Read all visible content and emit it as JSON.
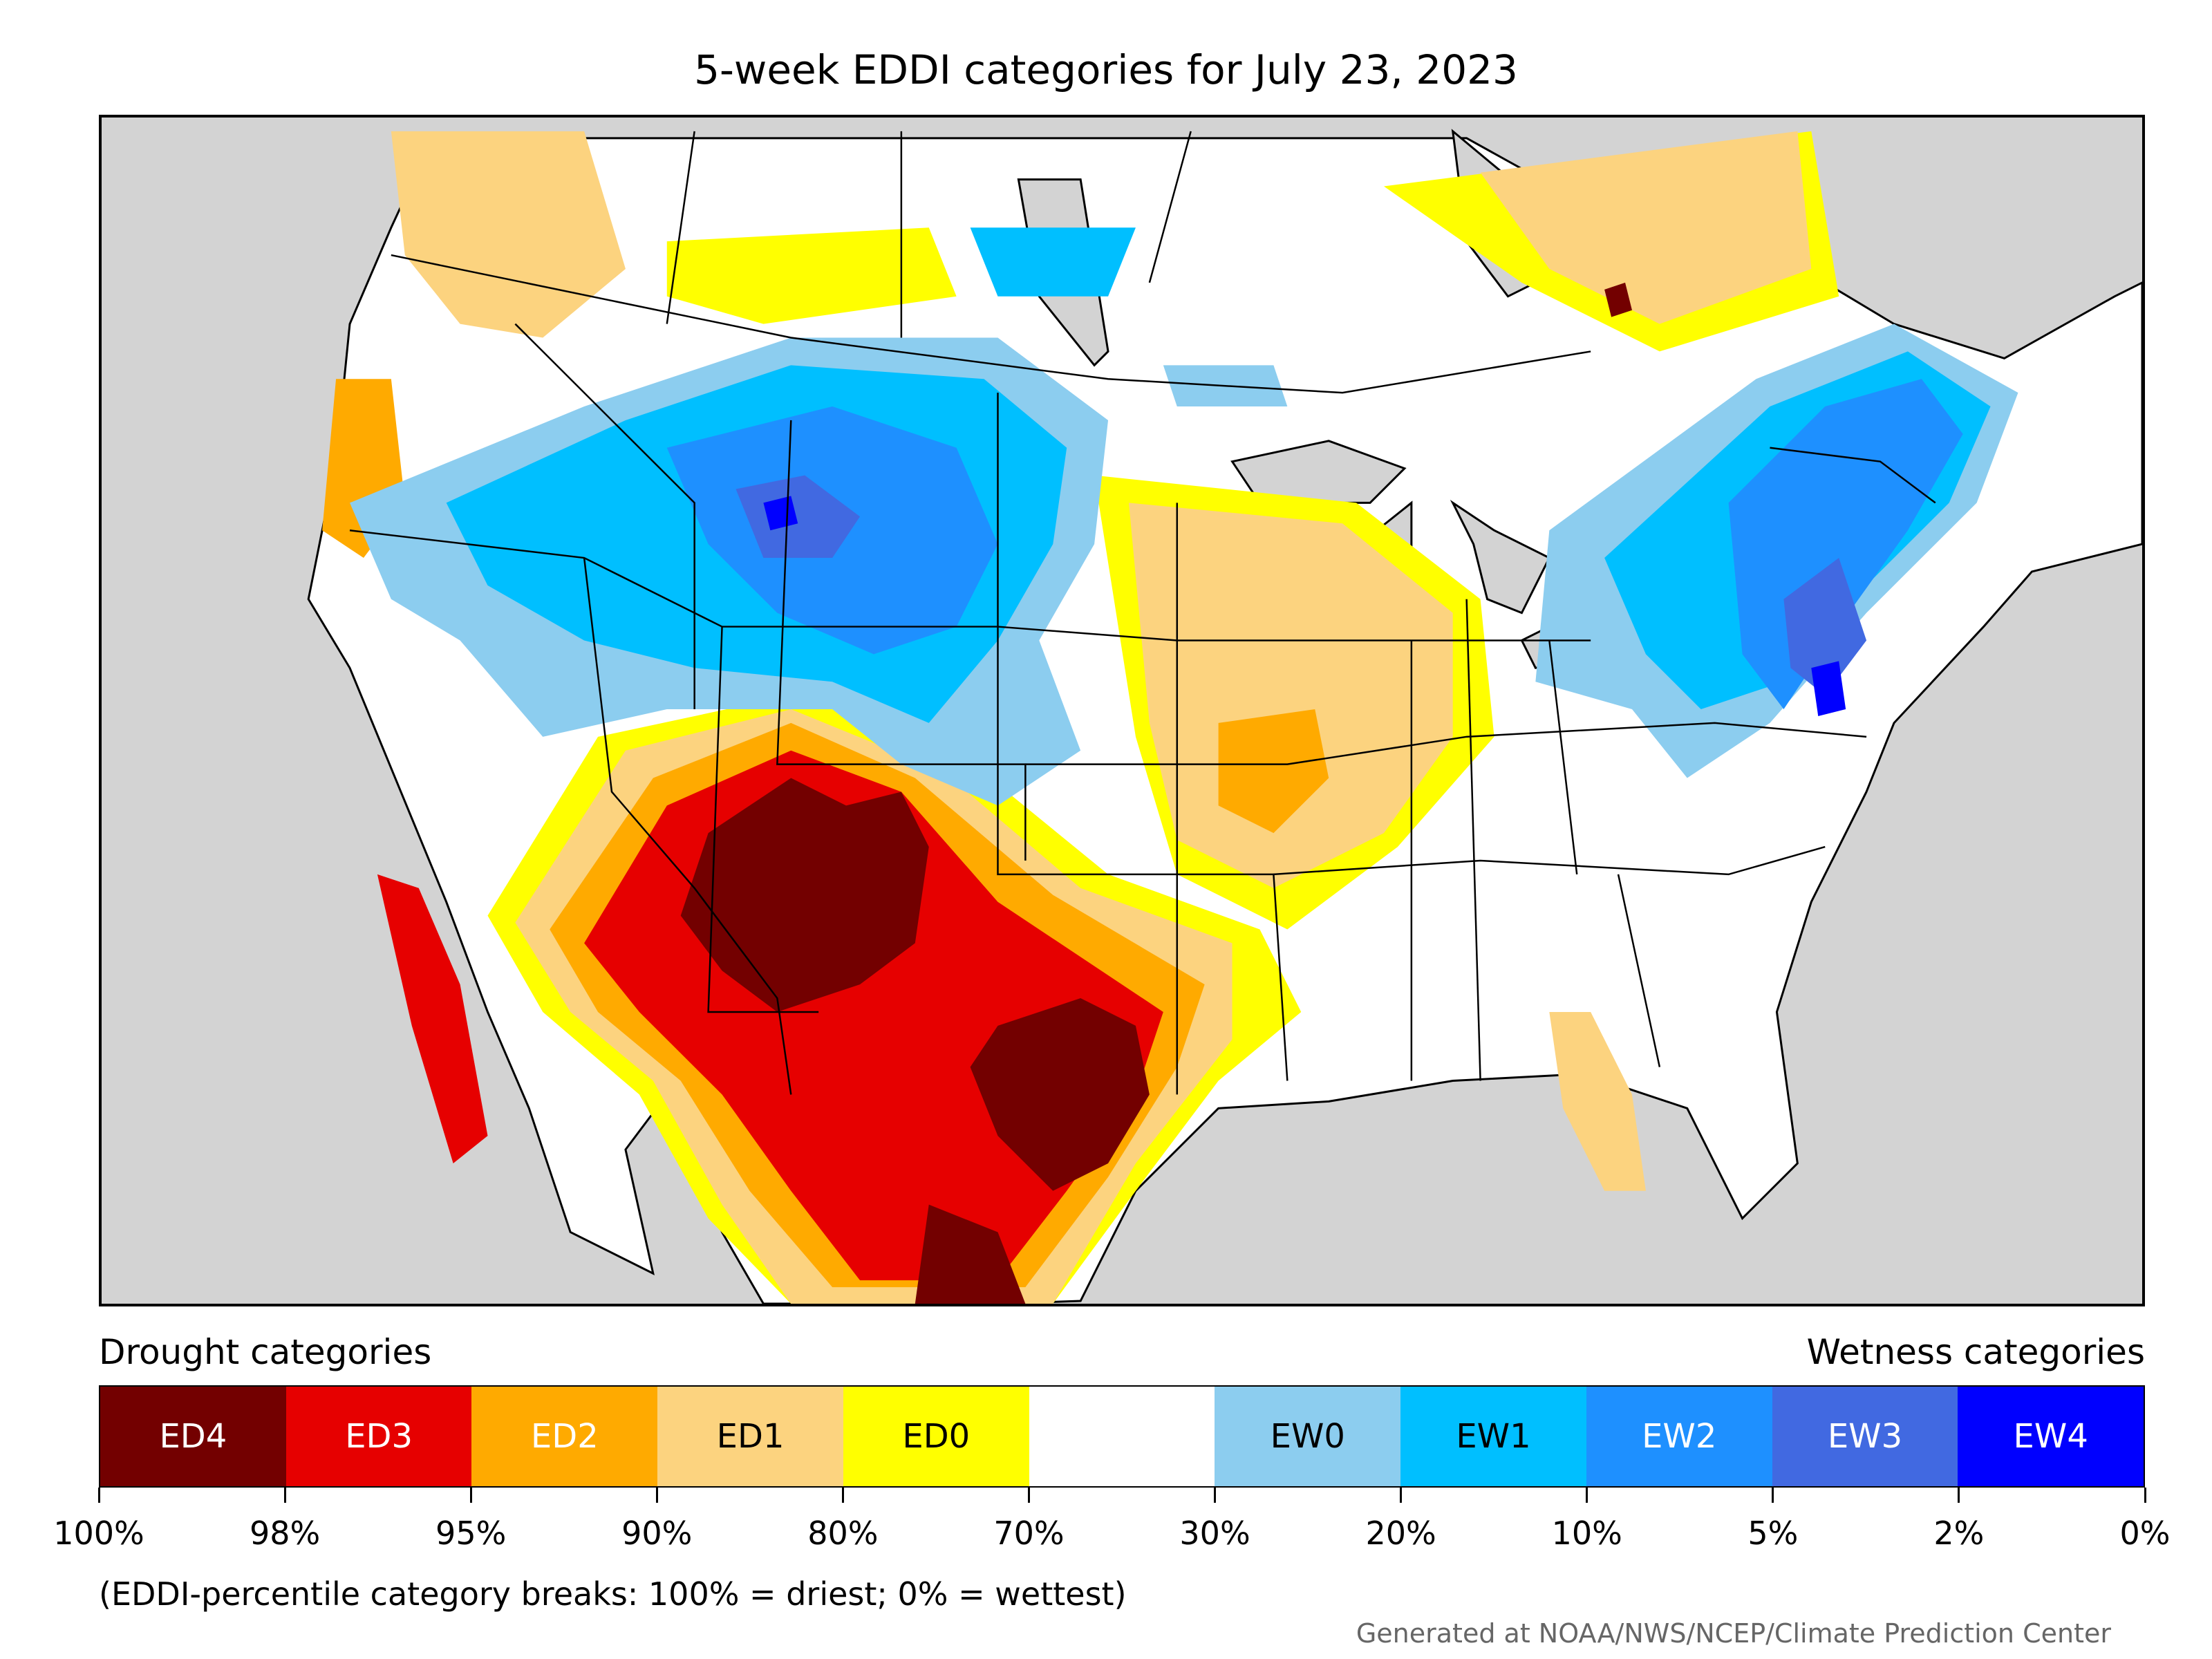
{
  "title": "5-week EDDI categories for July 23, 2023",
  "legend": {
    "drought_header": "Drought categories",
    "wetness_header": "Wetness categories",
    "categories": [
      {
        "label": "ED4",
        "color": "#730000",
        "text_color": "#ffffff"
      },
      {
        "label": "ED3",
        "color": "#e60000",
        "text_color": "#ffffff"
      },
      {
        "label": "ED2",
        "color": "#ffaa00",
        "text_color": "#ffffff"
      },
      {
        "label": "ED1",
        "color": "#fcd37f",
        "text_color": "#000000"
      },
      {
        "label": "ED0",
        "color": "#ffff00",
        "text_color": "#000000"
      },
      {
        "label": "",
        "color": "#ffffff",
        "text_color": "#000000"
      },
      {
        "label": "EW0",
        "color": "#8ccdef",
        "text_color": "#000000"
      },
      {
        "label": "EW1",
        "color": "#00bfff",
        "text_color": "#000000"
      },
      {
        "label": "EW2",
        "color": "#1e90ff",
        "text_color": "#ffffff"
      },
      {
        "label": "EW3",
        "color": "#4169e1",
        "text_color": "#ffffff"
      },
      {
        "label": "EW4",
        "color": "#0000ff",
        "text_color": "#ffffff"
      }
    ],
    "breaks": [
      "100%",
      "98%",
      "95%",
      "90%",
      "80%",
      "70%",
      "30%",
      "20%",
      "10%",
      "5%",
      "2%",
      "0%"
    ],
    "note": "(EDDI-percentile category breaks: 100% = driest; 0% = wettest)"
  },
  "credit": "Generated at NOAA/NWS/NCEP/Climate Prediction Center",
  "map": {
    "background_color": "#d3d3d3",
    "land_color": "#ffffff",
    "boundary_color": "#000000"
  }
}
